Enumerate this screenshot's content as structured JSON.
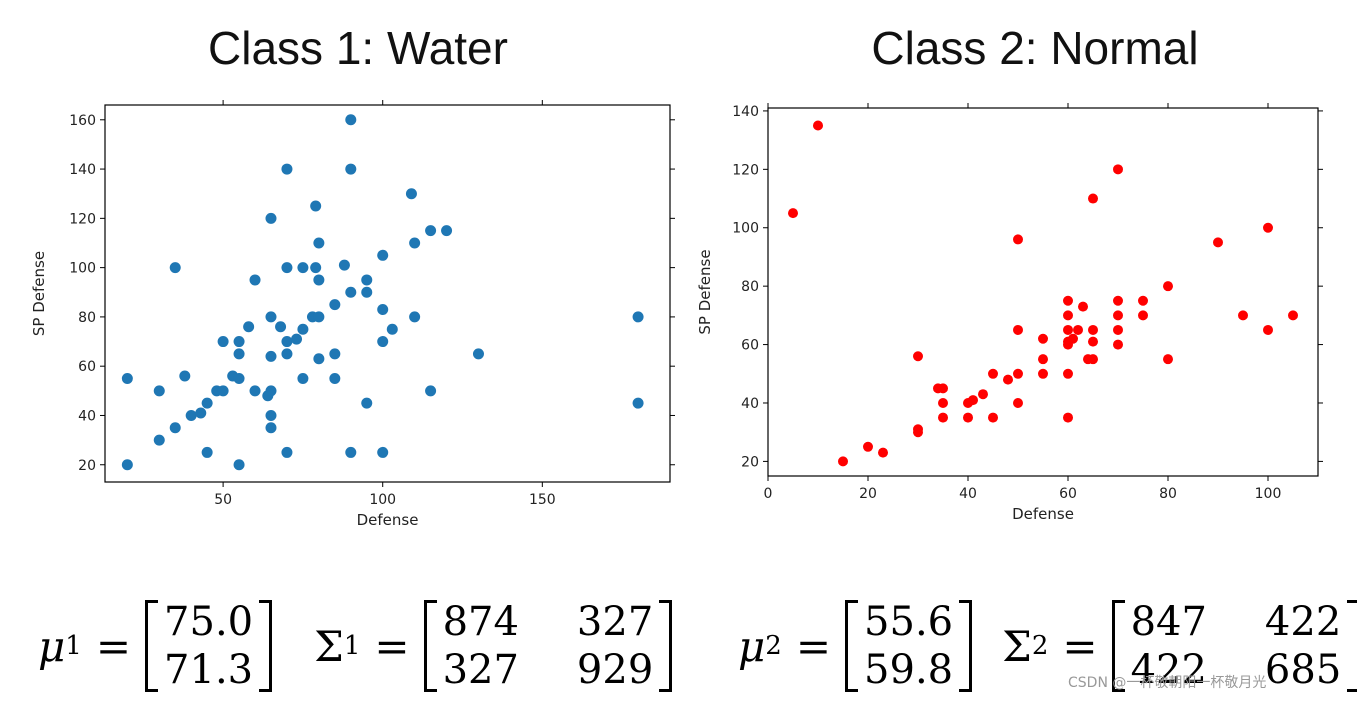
{
  "titles": {
    "class1": "Class 1: Water",
    "class2": "Class 2: Normal"
  },
  "chart_data": [
    {
      "type": "scatter",
      "title": "Class 1: Water",
      "xlabel": "Defense",
      "ylabel": "SP Defense",
      "xlim": [
        13,
        190
      ],
      "ylim": [
        13,
        166
      ],
      "xticks": [
        50,
        100,
        150
      ],
      "yticks": [
        20,
        40,
        60,
        80,
        100,
        120,
        140,
        160
      ],
      "grid": false,
      "color": "#1f77b4",
      "points": [
        [
          20,
          55
        ],
        [
          20,
          20
        ],
        [
          30,
          50
        ],
        [
          30,
          30
        ],
        [
          35,
          100
        ],
        [
          35,
          35
        ],
        [
          38,
          56
        ],
        [
          40,
          40
        ],
        [
          43,
          41
        ],
        [
          45,
          45
        ],
        [
          45,
          25
        ],
        [
          48,
          50
        ],
        [
          50,
          50
        ],
        [
          50,
          70
        ],
        [
          53,
          56
        ],
        [
          55,
          20
        ],
        [
          55,
          55
        ],
        [
          55,
          70
        ],
        [
          55,
          65
        ],
        [
          58,
          76
        ],
        [
          60,
          95
        ],
        [
          60,
          50
        ],
        [
          64,
          48
        ],
        [
          65,
          50
        ],
        [
          65,
          120
        ],
        [
          65,
          80
        ],
        [
          65,
          64
        ],
        [
          65,
          40
        ],
        [
          65,
          35
        ],
        [
          68,
          76
        ],
        [
          70,
          140
        ],
        [
          70,
          100
        ],
        [
          70,
          70
        ],
        [
          70,
          65
        ],
        [
          70,
          25
        ],
        [
          73,
          71
        ],
        [
          75,
          100
        ],
        [
          75,
          75
        ],
        [
          75,
          55
        ],
        [
          78,
          80
        ],
        [
          79,
          125
        ],
        [
          79,
          100
        ],
        [
          80,
          110
        ],
        [
          80,
          95
        ],
        [
          80,
          80
        ],
        [
          80,
          63
        ],
        [
          85,
          85
        ],
        [
          85,
          65
        ],
        [
          85,
          55
        ],
        [
          88,
          101
        ],
        [
          90,
          160
        ],
        [
          90,
          140
        ],
        [
          90,
          90
        ],
        [
          90,
          25
        ],
        [
          95,
          95
        ],
        [
          95,
          90
        ],
        [
          95,
          45
        ],
        [
          100,
          105
        ],
        [
          100,
          83
        ],
        [
          100,
          70
        ],
        [
          100,
          25
        ],
        [
          103,
          75
        ],
        [
          109,
          130
        ],
        [
          110,
          110
        ],
        [
          110,
          80
        ],
        [
          115,
          115
        ],
        [
          115,
          50
        ],
        [
          120,
          115
        ],
        [
          130,
          65
        ],
        [
          180,
          80
        ],
        [
          180,
          45
        ]
      ]
    },
    {
      "type": "scatter",
      "title": "Class 2: Normal",
      "xlabel": "Defense",
      "ylabel": "SP Defense",
      "xlim": [
        0,
        110
      ],
      "ylim": [
        15,
        141
      ],
      "xticks": [
        0,
        20,
        40,
        60,
        80,
        100
      ],
      "yticks": [
        20,
        40,
        60,
        80,
        100,
        120,
        140
      ],
      "grid": false,
      "color": "#ff0000",
      "points": [
        [
          5,
          105
        ],
        [
          10,
          135
        ],
        [
          15,
          20
        ],
        [
          20,
          25
        ],
        [
          23,
          23
        ],
        [
          30,
          56
        ],
        [
          30,
          31
        ],
        [
          30,
          30
        ],
        [
          34,
          45
        ],
        [
          35,
          45
        ],
        [
          35,
          40
        ],
        [
          35,
          35
        ],
        [
          40,
          40
        ],
        [
          40,
          35
        ],
        [
          41,
          41
        ],
        [
          43,
          43
        ],
        [
          45,
          50
        ],
        [
          45,
          35
        ],
        [
          48,
          48
        ],
        [
          50,
          96
        ],
        [
          50,
          65
        ],
        [
          50,
          50
        ],
        [
          50,
          40
        ],
        [
          55,
          62
        ],
        [
          55,
          55
        ],
        [
          55,
          50
        ],
        [
          60,
          75
        ],
        [
          60,
          70
        ],
        [
          60,
          65
        ],
        [
          60,
          61
        ],
        [
          60,
          60
        ],
        [
          60,
          50
        ],
        [
          60,
          35
        ],
        [
          61,
          62
        ],
        [
          62,
          65
        ],
        [
          63,
          73
        ],
        [
          64,
          55
        ],
        [
          65,
          110
        ],
        [
          65,
          65
        ],
        [
          65,
          61
        ],
        [
          65,
          55
        ],
        [
          70,
          120
        ],
        [
          70,
          75
        ],
        [
          70,
          70
        ],
        [
          70,
          65
        ],
        [
          70,
          60
        ],
        [
          75,
          75
        ],
        [
          75,
          70
        ],
        [
          80,
          80
        ],
        [
          80,
          55
        ],
        [
          90,
          95
        ],
        [
          95,
          70
        ],
        [
          100,
          100
        ],
        [
          100,
          65
        ],
        [
          105,
          70
        ]
      ]
    }
  ],
  "formulas": {
    "class1": {
      "mu_symbol": "μ",
      "mu_sup": "1",
      "mu": [
        "75.0",
        "71.3"
      ],
      "sigma_symbol": "Σ",
      "sigma_sup": "1",
      "sigma": [
        [
          "874",
          "327"
        ],
        [
          "327",
          "929"
        ]
      ]
    },
    "class2": {
      "mu_symbol": "μ",
      "mu_sup": "2",
      "mu": [
        "55.6",
        "59.8"
      ],
      "sigma_symbol": "Σ",
      "sigma_sup": "2",
      "sigma": [
        [
          "847",
          "422"
        ],
        [
          "422",
          "685"
        ]
      ]
    },
    "equals": "="
  },
  "watermark": "CSDN @一杯敬朝阳一杯敬月光"
}
